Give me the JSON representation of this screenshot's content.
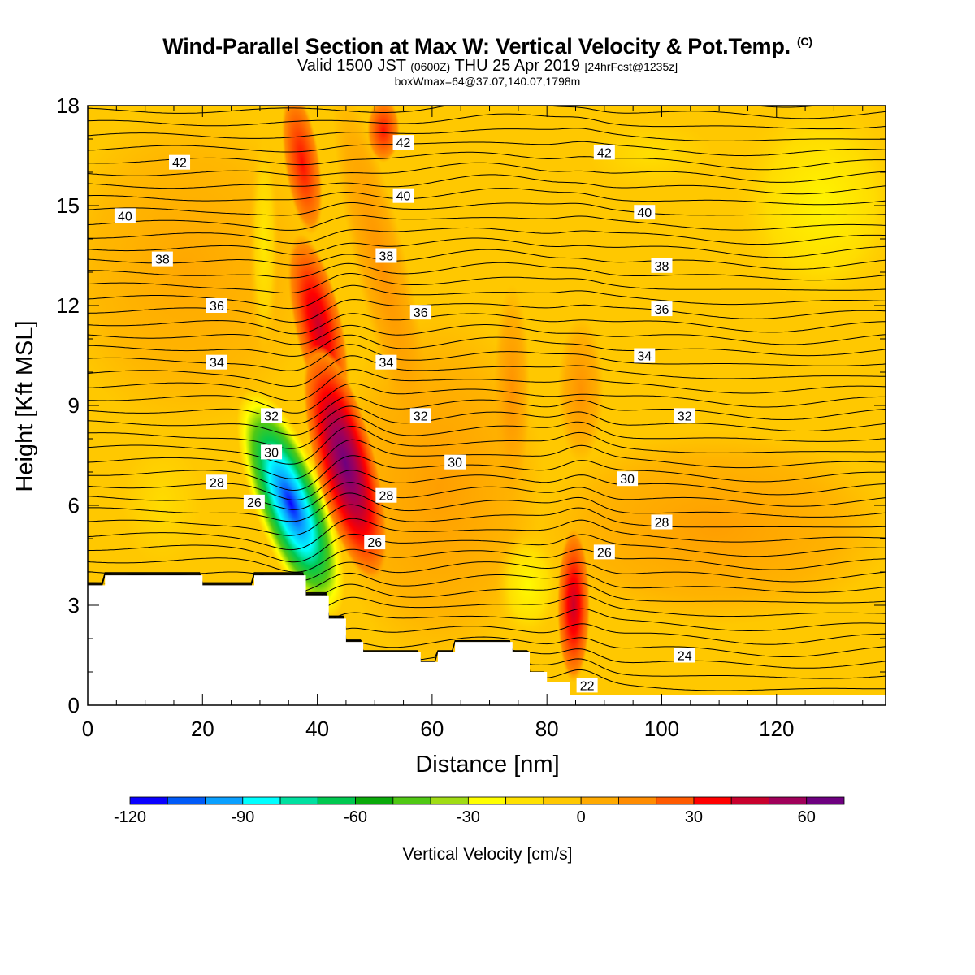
{
  "header": {
    "title": "Wind-Parallel Section at Max W: Vertical Velocity & Pot.Temp.",
    "title_mark": "(C)",
    "subtitle_valid": "Valid 1500 JST",
    "subtitle_z": "(0600Z)",
    "subtitle_date": "THU 25 Apr 2019",
    "subtitle_fcst": "[24hrFcst@1235z]",
    "box_info": "boxWmax=64@37.07,140.07,1798m"
  },
  "chart_data": {
    "type": "contour",
    "xlabel": "Distance [nm]",
    "ylabel": "Height [Kft MSL]",
    "xlim": [
      0,
      139
    ],
    "ylim": [
      0,
      18
    ],
    "xticks": [
      "0",
      "20",
      "40",
      "60",
      "80",
      "100",
      "120"
    ],
    "yticks": [
      "0",
      "3",
      "6",
      "9",
      "12",
      "15",
      "18"
    ],
    "colorbar": {
      "label": "Vertical Velocity [cm/s]",
      "range": [
        -120,
        70
      ],
      "step": 10,
      "tick_labels": [
        "-120",
        "-90",
        "-60",
        "-30",
        "0",
        "30",
        "60"
      ],
      "colors": [
        "#0a00ff",
        "#005af8",
        "#0aa0ff",
        "#00ffff",
        "#00e0a0",
        "#00c850",
        "#0aaa0a",
        "#50c814",
        "#a0dc14",
        "#ffff00",
        "#ffe100",
        "#ffc800",
        "#ffaa00",
        "#ff8c00",
        "#ff5a00",
        "#ff0000",
        "#c8002d",
        "#a0005a",
        "#6e0080"
      ]
    },
    "terrain_kft": [
      [
        0,
        3.6
      ],
      [
        3,
        3.6
      ],
      [
        3,
        3.9
      ],
      [
        20,
        3.9
      ],
      [
        20,
        3.6
      ],
      [
        29,
        3.6
      ],
      [
        29,
        3.9
      ],
      [
        38,
        3.9
      ],
      [
        38,
        3.3
      ],
      [
        42,
        3.3
      ],
      [
        42,
        2.6
      ],
      [
        45,
        2.6
      ],
      [
        45,
        1.9
      ],
      [
        48,
        1.9
      ],
      [
        48,
        1.6
      ],
      [
        58,
        1.6
      ],
      [
        58,
        1.3
      ],
      [
        61,
        1.3
      ],
      [
        61,
        1.6
      ],
      [
        64,
        1.6
      ],
      [
        64,
        1.9
      ],
      [
        74,
        1.9
      ],
      [
        74,
        1.6
      ],
      [
        77,
        1.6
      ],
      [
        77,
        1.0
      ],
      [
        80,
        1.0
      ],
      [
        80,
        0.7
      ],
      [
        84,
        0.7
      ],
      [
        84,
        0.3
      ],
      [
        139,
        0.3
      ]
    ],
    "contour_labels": [
      {
        "text": "42",
        "x": 16,
        "y": 16.3
      },
      {
        "text": "42",
        "x": 55,
        "y": 16.9
      },
      {
        "text": "42",
        "x": 90,
        "y": 16.6
      },
      {
        "text": "40",
        "x": 6.5,
        "y": 14.7
      },
      {
        "text": "40",
        "x": 55,
        "y": 15.3
      },
      {
        "text": "40",
        "x": 97,
        "y": 14.8
      },
      {
        "text": "38",
        "x": 13,
        "y": 13.4
      },
      {
        "text": "38",
        "x": 52,
        "y": 13.5
      },
      {
        "text": "38",
        "x": 100,
        "y": 13.2
      },
      {
        "text": "36",
        "x": 22.5,
        "y": 12.0
      },
      {
        "text": "36",
        "x": 58,
        "y": 11.8
      },
      {
        "text": "36",
        "x": 100,
        "y": 11.9
      },
      {
        "text": "34",
        "x": 22.5,
        "y": 10.3
      },
      {
        "text": "34",
        "x": 52,
        "y": 10.3
      },
      {
        "text": "34",
        "x": 97,
        "y": 10.5
      },
      {
        "text": "32",
        "x": 32,
        "y": 8.7
      },
      {
        "text": "32",
        "x": 58,
        "y": 8.7
      },
      {
        "text": "32",
        "x": 104,
        "y": 8.7
      },
      {
        "text": "30",
        "x": 32,
        "y": 7.6
      },
      {
        "text": "30",
        "x": 64,
        "y": 7.3
      },
      {
        "text": "30",
        "x": 94,
        "y": 6.8
      },
      {
        "text": "28",
        "x": 22.5,
        "y": 6.7
      },
      {
        "text": "28",
        "x": 52,
        "y": 6.3
      },
      {
        "text": "28",
        "x": 100,
        "y": 5.5
      },
      {
        "text": "26",
        "x": 29,
        "y": 6.1
      },
      {
        "text": "26",
        "x": 50,
        "y": 4.9
      },
      {
        "text": "26",
        "x": 90,
        "y": 4.6
      },
      {
        "text": "24",
        "x": 104,
        "y": 1.5
      },
      {
        "text": "22",
        "x": 87,
        "y": 0.6
      }
    ],
    "annotations": []
  }
}
